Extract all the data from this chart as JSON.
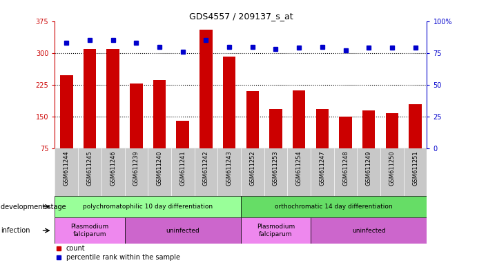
{
  "title": "GDS4557 / 209137_s_at",
  "samples": [
    "GSM611244",
    "GSM611245",
    "GSM611246",
    "GSM611239",
    "GSM611240",
    "GSM611241",
    "GSM611242",
    "GSM611243",
    "GSM611252",
    "GSM611253",
    "GSM611254",
    "GSM611247",
    "GSM611248",
    "GSM611249",
    "GSM611250",
    "GSM611251"
  ],
  "counts": [
    248,
    310,
    310,
    228,
    237,
    140,
    355,
    292,
    210,
    168,
    212,
    168,
    150,
    165,
    158,
    180
  ],
  "percentiles": [
    83,
    85,
    85,
    83,
    80,
    76,
    85,
    80,
    80,
    78,
    79,
    80,
    77,
    79,
    79,
    79
  ],
  "bar_color": "#cc0000",
  "dot_color": "#0000cc",
  "ylim_left": [
    75,
    375
  ],
  "ylim_right": [
    0,
    100
  ],
  "yticks_left": [
    75,
    150,
    225,
    300,
    375
  ],
  "yticks_right": [
    0,
    25,
    50,
    75,
    100
  ],
  "grid_values": [
    150,
    225,
    300
  ],
  "dev_stage_groups": [
    {
      "label": "polychromatophilic 10 day differentiation",
      "start": 0,
      "end": 7,
      "color": "#99ff99"
    },
    {
      "label": "orthochromatic 14 day differentiation",
      "start": 8,
      "end": 15,
      "color": "#66dd66"
    }
  ],
  "infection_groups": [
    {
      "label": "Plasmodium\nfalciparum",
      "start": 0,
      "end": 2,
      "color": "#ee88ee"
    },
    {
      "label": "uninfected",
      "start": 3,
      "end": 7,
      "color": "#cc66cc"
    },
    {
      "label": "Plasmodium\nfalciparum",
      "start": 8,
      "end": 10,
      "color": "#ee88ee"
    },
    {
      "label": "uninfected",
      "start": 11,
      "end": 15,
      "color": "#cc66cc"
    }
  ],
  "legend_count_label": "count",
  "legend_pct_label": "percentile rank within the sample",
  "dev_stage_label": "development stage",
  "infection_label": "infection",
  "bar_width": 0.55,
  "axis_left_color": "#cc0000",
  "axis_right_color": "#0000cc",
  "tick_area_color": "#c8c8c8"
}
